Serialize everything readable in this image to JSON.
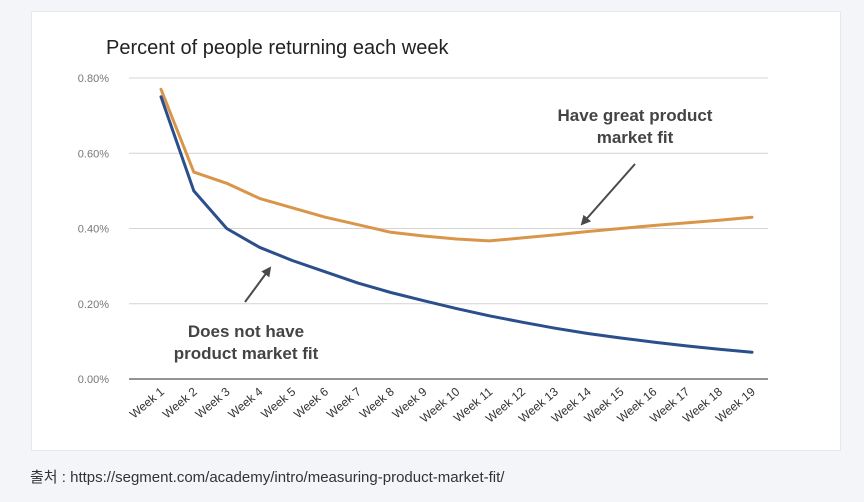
{
  "chart_data": {
    "type": "line",
    "title": "Percent of people returning each week",
    "xlabel": "",
    "ylabel": "",
    "categories": [
      "Week 1",
      "Week 2",
      "Week 3",
      "Week 4",
      "Week 5",
      "Week 6",
      "Week 7",
      "Week 8",
      "Week 9",
      "Week 10",
      "Week 11",
      "Week 12",
      "Week 13",
      "Week 14",
      "Week 15",
      "Week 16",
      "Week 17",
      "Week 18",
      "Week 19"
    ],
    "y_ticks": [
      "0.00%",
      "0.20%",
      "0.40%",
      "0.60%",
      "0.80%"
    ],
    "ylim": [
      0,
      0.8
    ],
    "grid": true,
    "series": [
      {
        "name": "Have great product market fit",
        "color": "#d9964b",
        "values": [
          0.77,
          0.55,
          0.52,
          0.48,
          0.455,
          0.43,
          0.41,
          0.39,
          0.38,
          0.372,
          0.367,
          0.375,
          0.383,
          0.392,
          0.4,
          0.408,
          0.415,
          0.422,
          0.43
        ]
      },
      {
        "name": "Does not have product market fit",
        "color": "#2b4e8c",
        "values": [
          0.75,
          0.5,
          0.4,
          0.35,
          0.315,
          0.285,
          0.255,
          0.23,
          0.208,
          0.187,
          0.168,
          0.151,
          0.135,
          0.121,
          0.109,
          0.098,
          0.088,
          0.079,
          0.071
        ]
      }
    ],
    "annotations": [
      {
        "lines": [
          "Have great product",
          "market fit"
        ],
        "series": 0
      },
      {
        "lines": [
          "Does not have",
          "product market fit"
        ],
        "series": 1
      }
    ]
  },
  "caption": "출처 : https://segment.com/academy/intro/measuring-product-market-fit/",
  "colors": {
    "grid": "#d4d4d4",
    "axis": "#555555",
    "arrow": "#4a4a4a"
  }
}
